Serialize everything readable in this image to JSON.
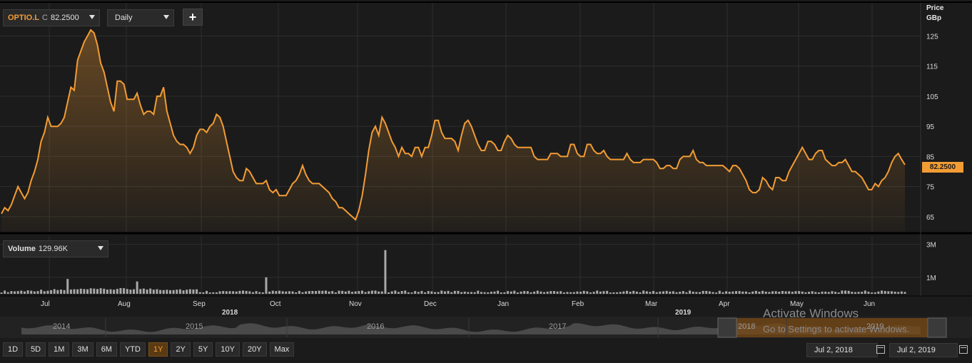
{
  "toolbar": {
    "symbol": "OPTIO.L",
    "close_label": "C",
    "close_value": "82.2500",
    "interval": "Daily",
    "add_label": "+"
  },
  "price_axis": {
    "header_line1": "Price",
    "header_line2": "GBp",
    "last_value_label": "82.2500"
  },
  "volume_panel": {
    "label": "Volume",
    "value": "129.96K",
    "axis_ticks": [
      {
        "label": "3M",
        "value": 3000000
      },
      {
        "label": "1M",
        "value": 1000000
      }
    ]
  },
  "range_buttons": [
    "1D",
    "5D",
    "1M",
    "3M",
    "6M",
    "YTD",
    "1Y",
    "2Y",
    "5Y",
    "10Y",
    "20Y",
    "Max"
  ],
  "active_range": "1Y",
  "date_range": {
    "from": "Jul 2, 2018",
    "to": "Jul 2, 2019"
  },
  "navigator": {
    "year_labels": [
      "2014",
      "2015",
      "2016",
      "2017",
      "2018",
      "2019"
    ],
    "selected_from": "2018",
    "selected_to": "2019"
  },
  "watermark": {
    "line1": "Activate Windows",
    "line2": "Go to Settings to activate Windows."
  },
  "colors": {
    "background": "#1b1b1b",
    "grid": "#2e2e2e",
    "line": "#f39c34",
    "badge": "#f39c34",
    "volume_bars": "#a8a8a8"
  },
  "chart_data": {
    "type": "line",
    "series": [
      {
        "name": "OPTIO.L",
        "values": [
          66,
          68,
          67,
          69,
          72,
          75,
          73,
          71,
          73,
          77,
          80,
          84,
          90,
          93,
          98,
          95,
          95,
          95,
          96,
          98,
          103,
          108,
          107,
          117,
          120,
          123,
          125,
          127,
          126,
          122,
          116,
          113,
          108,
          103,
          100,
          110,
          110,
          109,
          104,
          104,
          104,
          106,
          102,
          99,
          100,
          100,
          99,
          105,
          105,
          108,
          100,
          96,
          92,
          90,
          89,
          89,
          88,
          86,
          88,
          92,
          94,
          94,
          93,
          95,
          96,
          99,
          98,
          95,
          90,
          85,
          80,
          78,
          77,
          77,
          81,
          80,
          78,
          76,
          76,
          76,
          77,
          74,
          73,
          74,
          72,
          72,
          72,
          74,
          76,
          77,
          79,
          82,
          79,
          77,
          76,
          76,
          76,
          75,
          74,
          73,
          71,
          70,
          68,
          68,
          67,
          66,
          65,
          64,
          67,
          72,
          79,
          87,
          93,
          95,
          92,
          98,
          96,
          93,
          90,
          88,
          85,
          88,
          86,
          86,
          85,
          88,
          88,
          85,
          88,
          88,
          92,
          97,
          97,
          93,
          91,
          91,
          91,
          90,
          87,
          92,
          96,
          97,
          95,
          92,
          89,
          87,
          87,
          90,
          90,
          89,
          87,
          87,
          90,
          92,
          91,
          89,
          88,
          88,
          88,
          88,
          88,
          85,
          84,
          84,
          84,
          84,
          86,
          86,
          86,
          85,
          85,
          85,
          89,
          89,
          86,
          85,
          85,
          89,
          89,
          87,
          86,
          86,
          87,
          85,
          84,
          84,
          84,
          84,
          84,
          86,
          84,
          83,
          83,
          83,
          84,
          84,
          84,
          84,
          83,
          81,
          81,
          82,
          82,
          81,
          81,
          84,
          85,
          85,
          85,
          87,
          84,
          83,
          83,
          82,
          82,
          82,
          82,
          82,
          82,
          81,
          80,
          82,
          82,
          81,
          79,
          77,
          74,
          73,
          73,
          74,
          78,
          77,
          75,
          74,
          78,
          78,
          77,
          77,
          80,
          82,
          84,
          86,
          88,
          86,
          84,
          84,
          86,
          87,
          87,
          84,
          83,
          82,
          82,
          83,
          83,
          84,
          82,
          80,
          80,
          79,
          78,
          76,
          74,
          74,
          76,
          75,
          77,
          78,
          80,
          83,
          85,
          86,
          84,
          82.25
        ],
        "last": 82.25
      }
    ],
    "x_tick_labels": [
      "Jul",
      "Aug",
      "Sep",
      "Oct",
      "Nov",
      "Dec",
      "Jan",
      "Feb",
      "Mar",
      "Apr",
      "May",
      "Jun"
    ],
    "x_year_labels": [
      "2018",
      "2019"
    ],
    "y_tick_labels": [
      "125",
      "115",
      "105",
      "95",
      "85",
      "75",
      "65"
    ],
    "ylim": [
      60,
      136
    ],
    "volume": {
      "series_name": "Volume",
      "spike_values_m": [
        2.65,
        1.0,
        0.9,
        0.75
      ],
      "ylim": [
        0,
        3.5
      ]
    },
    "grid": true,
    "legend": "none"
  }
}
